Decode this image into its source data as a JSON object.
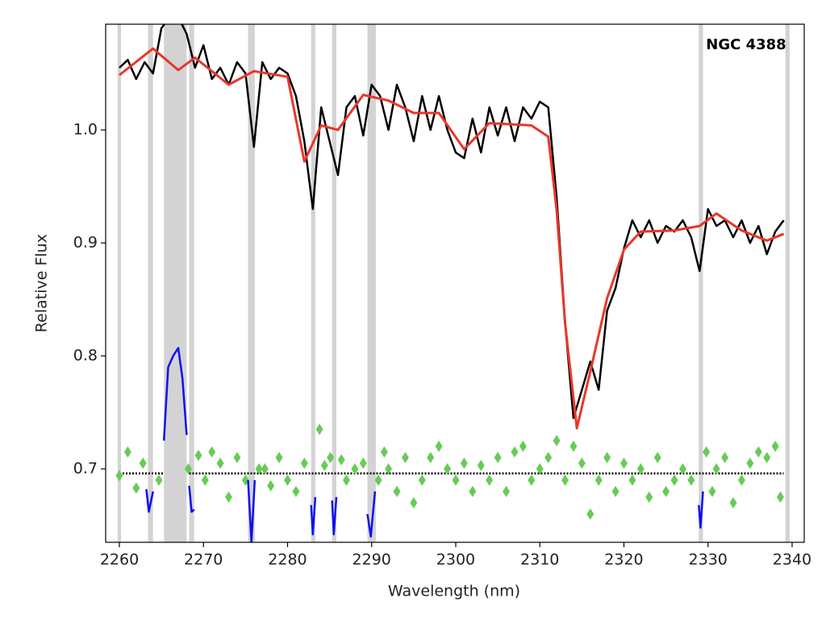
{
  "chart_data": {
    "type": "line",
    "annotation": "NGC 4388",
    "xlabel": "Wavelength (nm)",
    "ylabel": "Relative Flux",
    "xlim": [
      2258.37,
      2341.44
    ],
    "ylim": [
      0.635,
      1.0936
    ],
    "xticks": [
      2260,
      2270,
      2280,
      2290,
      2300,
      2310,
      2320,
      2330,
      2340
    ],
    "yticks": [
      0.7,
      0.8,
      0.9,
      {
        "value": 1.0,
        "label": "1.0"
      }
    ],
    "masked_regions": [
      [
        2259.8,
        2260.2
      ],
      [
        2263.4,
        2264.0
      ],
      [
        2265.3,
        2268.0
      ],
      [
        2268.3,
        2268.9
      ],
      [
        2275.3,
        2276.1
      ],
      [
        2282.8,
        2283.3
      ],
      [
        2285.3,
        2285.8
      ],
      [
        2289.5,
        2290.5
      ],
      [
        2328.9,
        2329.4
      ],
      [
        2339.2,
        2339.7
      ]
    ],
    "mask_color": "#d3d3d3",
    "observed": {
      "color": "#000000",
      "x": [
        2260,
        2261,
        2262,
        2263,
        2264,
        2265,
        2266,
        2267,
        2268,
        2269,
        2270,
        2271,
        2272,
        2273,
        2274,
        2275,
        2276,
        2277,
        2278,
        2279,
        2280,
        2281,
        2282,
        2283,
        2284,
        2285,
        2286,
        2287,
        2288,
        2289,
        2290,
        2291,
        2292,
        2293,
        2294,
        2295,
        2296,
        2297,
        2298,
        2299,
        2300,
        2301,
        2302,
        2303,
        2304,
        2305,
        2306,
        2307,
        2308,
        2309,
        2310,
        2311,
        2312,
        2313,
        2314,
        2315,
        2316,
        2317,
        2318,
        2319,
        2320,
        2321,
        2322,
        2323,
        2324,
        2325,
        2326,
        2327,
        2328,
        2329,
        2330,
        2331,
        2332,
        2333,
        2334,
        2335,
        2336,
        2337,
        2338,
        2339
      ],
      "values": [
        1.055,
        1.062,
        1.045,
        1.06,
        1.05,
        1.09,
        1.1,
        1.1,
        1.085,
        1.055,
        1.075,
        1.045,
        1.055,
        1.04,
        1.06,
        1.05,
        0.985,
        1.06,
        1.045,
        1.055,
        1.05,
        1.03,
        0.99,
        0.93,
        1.02,
        0.99,
        0.96,
        1.02,
        1.03,
        0.995,
        1.04,
        1.03,
        1.0,
        1.04,
        1.02,
        0.99,
        1.03,
        1.0,
        1.03,
        1.0,
        0.98,
        0.975,
        1.01,
        0.98,
        1.02,
        0.995,
        1.02,
        0.99,
        1.02,
        1.01,
        1.025,
        1.02,
        0.94,
        0.83,
        0.745,
        0.77,
        0.795,
        0.77,
        0.84,
        0.86,
        0.895,
        0.92,
        0.905,
        0.92,
        0.9,
        0.915,
        0.91,
        0.92,
        0.905,
        0.875,
        0.93,
        0.915,
        0.92,
        0.905,
        0.92,
        0.9,
        0.915,
        0.89,
        0.91,
        0.92
      ]
    },
    "model": {
      "color": "#e8372a",
      "x": [
        2260,
        2264,
        2267,
        2269,
        2273,
        2276,
        2280,
        2282,
        2284,
        2286,
        2289,
        2292,
        2295,
        2298,
        2301,
        2304,
        2309,
        2311,
        2312,
        2313,
        2314.4,
        2316,
        2318,
        2320,
        2322,
        2326,
        2329,
        2331,
        2334,
        2337,
        2339
      ],
      "values": [
        1.0486,
        1.072,
        1.053,
        1.064,
        1.04,
        1.052,
        1.047,
        0.972,
        1.004,
        1.0,
        1.031,
        1.026,
        1.015,
        1.015,
        0.983,
        1.006,
        1.004,
        0.994,
        0.929,
        0.829,
        0.736,
        0.786,
        0.851,
        0.894,
        0.91,
        0.911,
        0.915,
        0.926,
        0.911,
        0.902,
        0.908
      ]
    },
    "continuum": {
      "color": "#000000",
      "x": [
        2260,
        2265.3,
        null,
        2268.3,
        2339
      ],
      "values": [
        0.696,
        0.696,
        null,
        0.696,
        0.696
      ]
    },
    "residuals": {
      "color": "#66cc55",
      "x": [
        2260,
        2261,
        2262,
        2262.8,
        2264.7,
        2268.2,
        2269.4,
        2270.2,
        2271,
        2272,
        2273,
        2274,
        2275,
        2276.6,
        2277.3,
        2278,
        2279,
        2280,
        2281,
        2282,
        2283.8,
        2284.4,
        2285.1,
        2286.4,
        2287,
        2288,
        2289,
        2290.8,
        2291.5,
        2292,
        2293,
        2294,
        2295,
        2296,
        2297,
        2298,
        2299,
        2300,
        2301,
        2302,
        2303,
        2304,
        2305,
        2306,
        2307,
        2308,
        2309,
        2310,
        2311,
        2312,
        2313,
        2314,
        2315,
        2316,
        2317,
        2318,
        2319,
        2320,
        2321,
        2322,
        2323,
        2324,
        2325,
        2326,
        2327,
        2328,
        2329.8,
        2330.5,
        2331,
        2332,
        2333,
        2334,
        2335,
        2336,
        2337,
        2338,
        2338.6
      ],
      "values": [
        0.694,
        0.715,
        0.683,
        0.705,
        0.69,
        0.7,
        0.712,
        0.69,
        0.715,
        0.705,
        0.675,
        0.71,
        0.69,
        0.7,
        0.7,
        0.685,
        0.71,
        0.69,
        0.68,
        0.705,
        0.735,
        0.703,
        0.71,
        0.708,
        0.69,
        0.7,
        0.705,
        0.69,
        0.715,
        0.7,
        0.68,
        0.71,
        0.67,
        0.69,
        0.71,
        0.72,
        0.7,
        0.69,
        0.705,
        0.68,
        0.703,
        0.69,
        0.71,
        0.68,
        0.715,
        0.72,
        0.69,
        0.7,
        0.71,
        0.725,
        0.69,
        0.72,
        0.705,
        0.66,
        0.69,
        0.71,
        0.68,
        0.705,
        0.69,
        0.7,
        0.675,
        0.71,
        0.68,
        0.69,
        0.7,
        0.69,
        0.715,
        0.68,
        0.7,
        0.71,
        0.67,
        0.69,
        0.705,
        0.715,
        0.71,
        0.72,
        0.675
      ]
    },
    "masked_residuals": {
      "color": "#1010ee",
      "x": [
        2263.2,
        2263.5,
        2264.0,
        null,
        2265.3,
        2265.8,
        2266.4,
        2267.0,
        2267.5,
        2268.0,
        null,
        2268.3,
        2268.6,
        2268.9,
        null,
        2275.3,
        2275.7,
        2276.1,
        null,
        2282.8,
        2283.0,
        2283.3,
        null,
        2285.3,
        2285.5,
        2285.8,
        null,
        2289.5,
        2289.9,
        2290.4,
        null,
        2328.9,
        2329.1,
        2329.4
      ],
      "values": [
        0.682,
        0.662,
        0.68,
        null,
        0.725,
        0.79,
        0.8,
        0.807,
        0.78,
        0.73,
        null,
        0.685,
        0.662,
        0.664,
        null,
        0.69,
        0.635,
        0.69,
        null,
        0.668,
        0.642,
        0.675,
        null,
        0.672,
        0.642,
        0.675,
        null,
        0.66,
        0.64,
        0.68,
        null,
        0.668,
        0.648,
        0.68
      ]
    }
  }
}
